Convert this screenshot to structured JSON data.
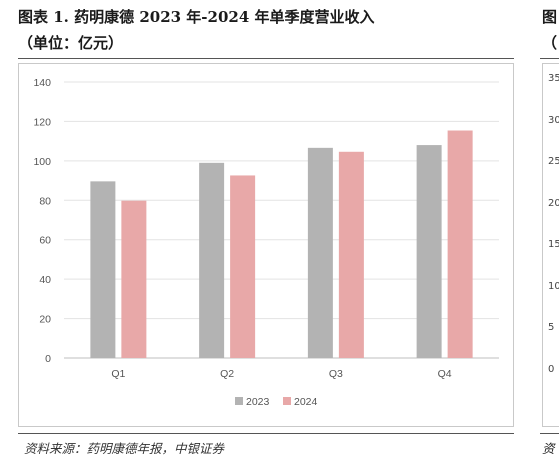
{
  "figure": {
    "title_line1": "图表 1. 药明康德 2023 年-2024 年单季度营业收入",
    "title_line2": "（单位：亿元）",
    "source": "资料来源：药明康德年报，中银证券"
  },
  "next_figure": {
    "title_line1": "图",
    "title_line2": "（",
    "y_ticks": [
      "35",
      "30",
      "25",
      "20",
      "15",
      "10",
      "5",
      "0"
    ],
    "source": "资"
  },
  "chart_data": {
    "type": "bar",
    "title": "",
    "xlabel": "",
    "ylabel": "",
    "categories": [
      "Q1",
      "Q2",
      "Q3",
      "Q4"
    ],
    "series": [
      {
        "name": "2023",
        "values": [
          89.6,
          99.0,
          106.6,
          108.0
        ],
        "color": "#b3b3b3"
      },
      {
        "name": "2024",
        "values": [
          79.8,
          92.6,
          104.6,
          115.4
        ],
        "color": "#e8a8a8"
      }
    ],
    "ylim": [
      0,
      140
    ],
    "y_ticks": [
      0,
      20,
      40,
      60,
      80,
      100,
      120,
      140
    ],
    "grid": true,
    "legend_position": "bottom-center"
  }
}
